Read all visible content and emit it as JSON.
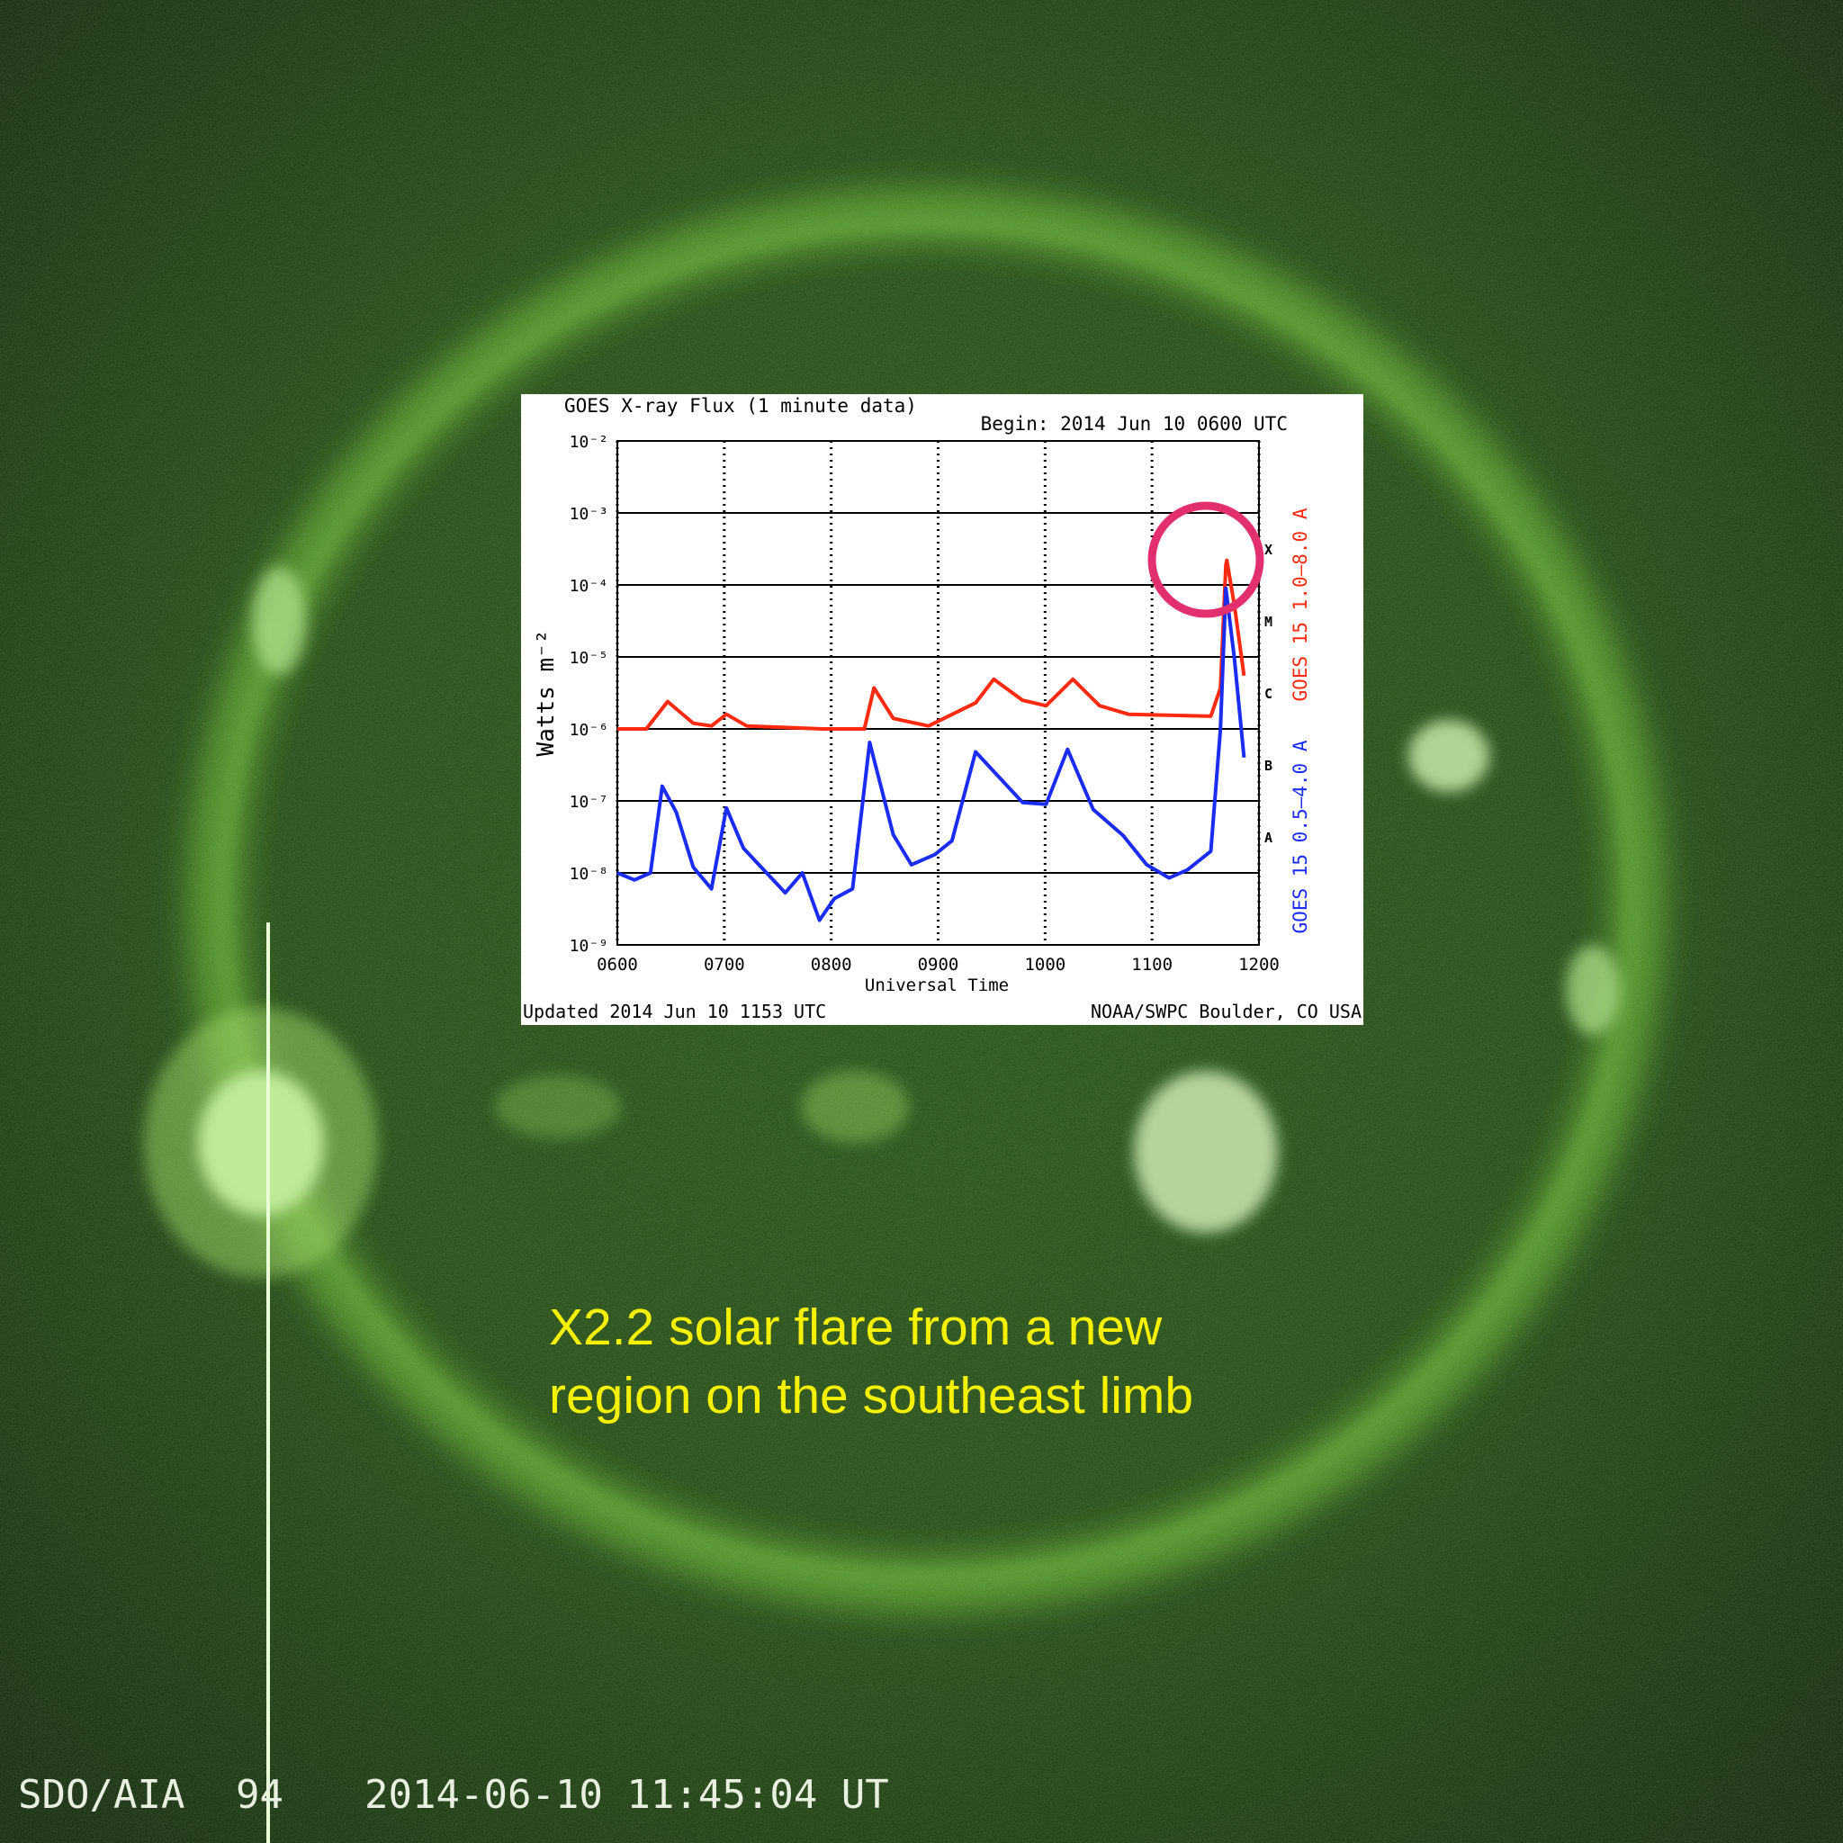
{
  "chart_data": {
    "type": "line",
    "title": "GOES X-ray Flux (1 minute data)",
    "subtitle": "Begin: 2014 Jun 10 0600 UTC",
    "y_label": "Watts m⁻²",
    "x_label": "Universal Time",
    "footer_left": "Updated 2014 Jun 10 1153 UTC",
    "footer_right": "NOAA/SWPC Boulder, CO USA",
    "y_scale": "log",
    "grid": true,
    "xlim": [
      6,
      12
    ],
    "xticks": [
      {
        "value": 6,
        "label": "0600"
      },
      {
        "value": 7,
        "label": "0700"
      },
      {
        "value": 8,
        "label": "0800"
      },
      {
        "value": 9,
        "label": "0900"
      },
      {
        "value": 10,
        "label": "1000"
      },
      {
        "value": 11,
        "label": "1100"
      },
      {
        "value": 12,
        "label": "1200"
      }
    ],
    "ylim": [
      1e-09,
      0.01
    ],
    "yticks": [
      {
        "value": 1e-09,
        "label": "10⁻⁹"
      },
      {
        "value": 1e-08,
        "label": "10⁻⁸"
      },
      {
        "value": 1e-07,
        "label": "10⁻⁷"
      },
      {
        "value": 1e-06,
        "label": "10⁻⁶"
      },
      {
        "value": 1e-05,
        "label": "10⁻⁵"
      },
      {
        "value": 0.0001,
        "label": "10⁻⁴"
      },
      {
        "value": 0.001,
        "label": "10⁻³"
      },
      {
        "value": 0.01,
        "label": "10⁻²"
      }
    ],
    "flare_classes": [
      {
        "value": 1e-08,
        "label": "A"
      },
      {
        "value": 1e-07,
        "label": "B"
      },
      {
        "value": 1e-06,
        "label": "C"
      },
      {
        "value": 1e-05,
        "label": "M"
      },
      {
        "value": 0.0001,
        "label": "X"
      }
    ],
    "series": [
      {
        "name": "GOES 15 1.0–8.0 A",
        "color": "#ff2a10",
        "x": [
          6.0,
          6.27,
          6.47,
          6.71,
          6.88,
          7.02,
          7.21,
          7.92,
          8.31,
          8.4,
          8.58,
          8.91,
          9.35,
          9.52,
          9.79,
          10.01,
          10.26,
          10.51,
          10.78,
          11.55,
          11.64,
          11.69,
          11.7,
          11.77,
          11.86
        ],
        "values": [
          1e-06,
          1e-06,
          2.4e-06,
          1.2e-06,
          1.1e-06,
          1.6e-06,
          1.1e-06,
          1e-06,
          1e-06,
          3.7e-06,
          1.4e-06,
          1.1e-06,
          2.3e-06,
          4.9e-06,
          2.5e-06,
          2.1e-06,
          4.9e-06,
          2.1e-06,
          1.6e-06,
          1.5e-06,
          3.7e-06,
          0.00019,
          0.00022,
          5.2e-05,
          5.5e-06
        ]
      },
      {
        "name": "GOES 15 0.5–4.0 A",
        "color": "#1a2cf0",
        "x": [
          6.0,
          6.16,
          6.31,
          6.42,
          6.55,
          6.71,
          6.88,
          7.02,
          7.18,
          7.37,
          7.57,
          7.73,
          7.89,
          8.03,
          8.2,
          8.36,
          8.58,
          8.75,
          8.97,
          9.13,
          9.35,
          9.55,
          9.79,
          10.01,
          10.21,
          10.45,
          10.73,
          10.95,
          11.16,
          11.33,
          11.55,
          11.64,
          11.69,
          11.77,
          11.86
        ],
        "values": [
          1e-08,
          8e-09,
          1e-08,
          1.6e-07,
          7e-08,
          1.2e-08,
          6e-09,
          8e-08,
          2.2e-08,
          1.1e-08,
          5.3e-09,
          1e-08,
          2.2e-09,
          4.4e-09,
          6e-09,
          6.5e-07,
          3.4e-08,
          1.3e-08,
          1.8e-08,
          2.8e-08,
          4.8e-07,
          2.3e-07,
          9.5e-08,
          9e-08,
          5.2e-07,
          7.6e-08,
          3.3e-08,
          1.3e-08,
          8.5e-09,
          1.1e-08,
          2e-08,
          1e-06,
          9e-05,
          9.5e-06,
          4e-07
        ]
      }
    ]
  },
  "caption": [
    "X2.2 solar flare from a new",
    "region on the southeast limb"
  ],
  "instrument": "SDO/AIA",
  "wavelength": "94",
  "timestamp": "2014-06-10 11:45:04 UT"
}
